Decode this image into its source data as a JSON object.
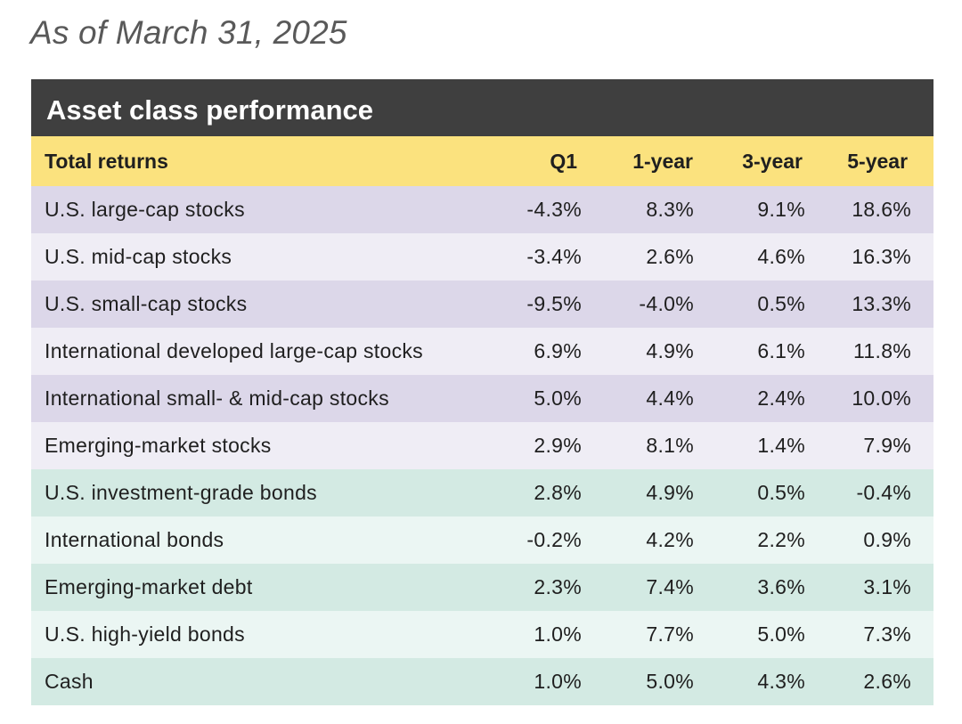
{
  "as_of": "As of March 31, 2025",
  "colors": {
    "title_bg": "#3f3f3f",
    "header_bg": "#fbe27e",
    "equity_shade": "#dcd7e9",
    "equity_light": "#efedf5",
    "fixed_income_shade": "#d3eae3",
    "fixed_income_light": "#ebf6f3"
  },
  "chart_data": {
    "type": "table",
    "title": "Asset class performance",
    "row_header_label": "Total returns",
    "columns": [
      "Q1",
      "1-year",
      "3-year",
      "5-year"
    ],
    "rows": [
      {
        "name": "U.S. large-cap stocks",
        "group": "equity",
        "values": [
          "-4.3%",
          "8.3%",
          "9.1%",
          "18.6%"
        ]
      },
      {
        "name": "U.S. mid-cap stocks",
        "group": "equity",
        "values": [
          "-3.4%",
          "2.6%",
          "4.6%",
          "16.3%"
        ]
      },
      {
        "name": "U.S. small-cap stocks",
        "group": "equity",
        "values": [
          "-9.5%",
          "-4.0%",
          "0.5%",
          "13.3%"
        ]
      },
      {
        "name": "International developed large-cap stocks",
        "group": "equity",
        "values": [
          "6.9%",
          "4.9%",
          "6.1%",
          "11.8%"
        ]
      },
      {
        "name": "International small- & mid-cap stocks",
        "group": "equity",
        "values": [
          "5.0%",
          "4.4%",
          "2.4%",
          "10.0%"
        ]
      },
      {
        "name": "Emerging-market stocks",
        "group": "equity",
        "values": [
          "2.9%",
          "8.1%",
          "1.4%",
          "7.9%"
        ]
      },
      {
        "name": "U.S. investment-grade bonds",
        "group": "fixed",
        "values": [
          "2.8%",
          "4.9%",
          "0.5%",
          "-0.4%"
        ]
      },
      {
        "name": "International bonds",
        "group": "fixed",
        "values": [
          "-0.2%",
          "4.2%",
          "2.2%",
          "0.9%"
        ]
      },
      {
        "name": "Emerging-market debt",
        "group": "fixed",
        "values": [
          "2.3%",
          "7.4%",
          "3.6%",
          "3.1%"
        ]
      },
      {
        "name": "U.S. high-yield bonds",
        "group": "fixed",
        "values": [
          "1.0%",
          "7.7%",
          "5.0%",
          "7.3%"
        ]
      },
      {
        "name": "Cash",
        "group": "fixed",
        "values": [
          "1.0%",
          "5.0%",
          "4.3%",
          "2.6%"
        ]
      }
    ]
  }
}
